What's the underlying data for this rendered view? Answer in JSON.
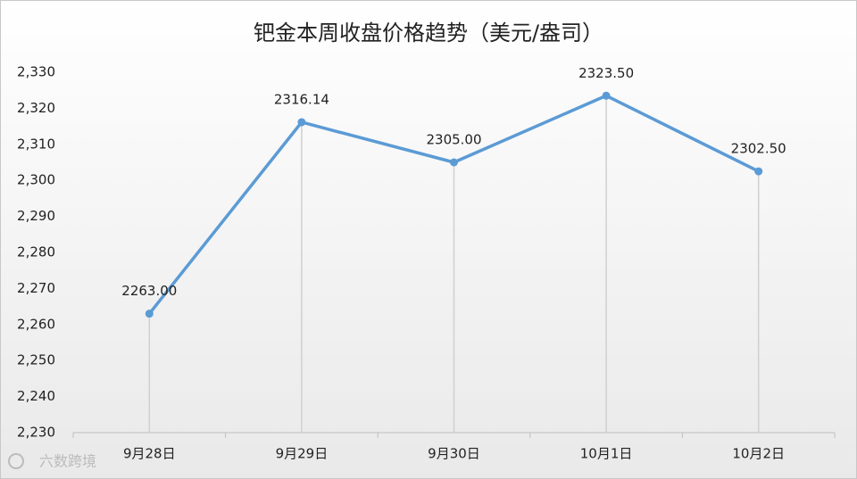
{
  "chart_data": {
    "type": "line",
    "title": "钯金本周收盘价格趋势（美元/盎司）",
    "categories": [
      "9月28日",
      "9月29日",
      "9月30日",
      "10月1日",
      "10月2日"
    ],
    "series": [
      {
        "color": "#5b9bd5",
        "values": [
          2263.0,
          2316.14,
          2305.0,
          2323.5,
          2302.5
        ],
        "value_labels": [
          "2263.00",
          "2316.14",
          "2305.00",
          "2323.50",
          "2302.50"
        ]
      }
    ],
    "ylim": [
      2230,
      2330
    ],
    "yticks": [
      {
        "value": 2230,
        "label": "2,230"
      },
      {
        "value": 2240,
        "label": "2,240"
      },
      {
        "value": 2250,
        "label": "2,250"
      },
      {
        "value": 2260,
        "label": "2,260"
      },
      {
        "value": 2270,
        "label": "2,270"
      },
      {
        "value": 2280,
        "label": "2,280"
      },
      {
        "value": 2290,
        "label": "2,290"
      },
      {
        "value": 2300,
        "label": "2,300"
      },
      {
        "value": 2310,
        "label": "2,310"
      },
      {
        "value": 2320,
        "label": "2,320"
      },
      {
        "value": 2330,
        "label": "2,330"
      }
    ],
    "grid": false,
    "drop_lines": true,
    "watermark": "六数跨境"
  }
}
